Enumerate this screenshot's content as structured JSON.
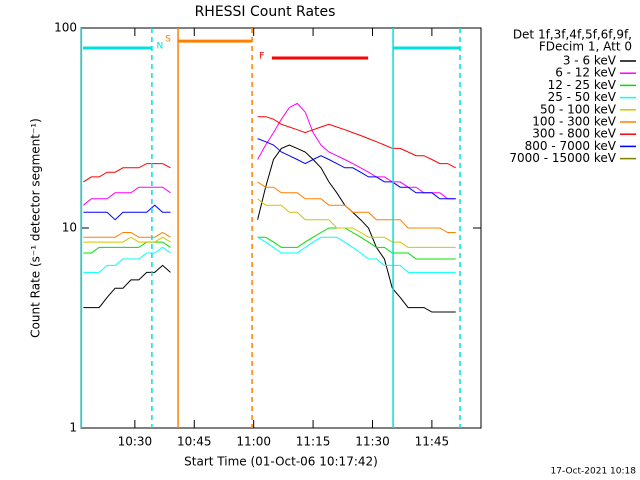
{
  "chart_data": {
    "type": "line",
    "title": "RHESSI Count Rates",
    "y_label": "Count Rate (s⁻¹ detector segment⁻¹)",
    "x_label": "Start Time (01-Oct-06 10:17:42)",
    "footer": "17-Oct-2021 10:18",
    "legend_header": [
      "Det 1f,3f,4f,5f,6f,9f,",
      "FDecim 1, Att 0"
    ],
    "log_y": true,
    "xlim": [
      616.4,
      717.4
    ],
    "ylim": [
      1,
      100
    ],
    "yticks": [
      1,
      10,
      100
    ],
    "xticks": [
      {
        "value": 630,
        "label": "10:30"
      },
      {
        "value": 645,
        "label": "10:45"
      },
      {
        "value": 660,
        "label": "11:00"
      },
      {
        "value": 675,
        "label": "11:15"
      },
      {
        "value": 690,
        "label": "11:30"
      },
      {
        "value": 705,
        "label": "11:45"
      }
    ],
    "x": [
      617,
      619,
      621,
      623,
      625,
      627,
      629,
      631,
      633,
      635,
      637,
      639,
      650,
      661,
      663,
      665,
      667,
      669,
      671,
      673,
      675,
      677,
      679,
      681,
      683,
      685,
      687,
      689,
      691,
      693,
      695,
      697,
      699,
      701,
      703,
      705,
      707,
      709,
      711
    ],
    "series": [
      {
        "name": "3 - 6 keV",
        "color": "#000000",
        "values": [
          4,
          4,
          4,
          4.5,
          5,
          5,
          5.5,
          5.5,
          6,
          6,
          6.5,
          6,
          null,
          11,
          16,
          22,
          25,
          26,
          25,
          24,
          22,
          20,
          17,
          15,
          13,
          12,
          11,
          10,
          8,
          7,
          5,
          4.5,
          4,
          4,
          4,
          3.8,
          3.8,
          3.8,
          3.8
        ]
      },
      {
        "name": "6 - 12 keV",
        "color": "#ff00ff",
        "values": [
          13,
          14,
          14,
          14,
          15,
          15,
          15,
          16,
          16,
          16,
          16,
          15,
          null,
          22,
          26,
          30,
          35,
          40,
          42,
          38,
          30,
          26,
          24,
          23,
          22,
          21,
          20,
          19,
          18,
          18,
          17,
          17,
          16,
          16,
          15,
          15,
          15,
          14,
          14
        ]
      },
      {
        "name": "12 - 25 keV",
        "color": "#00e000",
        "values": [
          7.5,
          7.5,
          8,
          8,
          8,
          8,
          8,
          8,
          8.5,
          8.5,
          8.5,
          8,
          null,
          9,
          9,
          8.5,
          8,
          8,
          8,
          8.5,
          9,
          9.5,
          10,
          10,
          10,
          9.5,
          9,
          8.5,
          8,
          8,
          7.5,
          7.5,
          7.5,
          7,
          7,
          7,
          7,
          7,
          7
        ]
      },
      {
        "name": "25 - 50 keV",
        "color": "#00ffff",
        "values": [
          6,
          6,
          6,
          6.5,
          6.5,
          7,
          7,
          7,
          7.5,
          7.5,
          8,
          7.5,
          null,
          9,
          8.5,
          8,
          7.5,
          7.5,
          7.5,
          8,
          8.5,
          9,
          9,
          9,
          8.5,
          8,
          7.5,
          7,
          7,
          6.5,
          6.5,
          6.5,
          6,
          6,
          6,
          6,
          6,
          6,
          6
        ]
      },
      {
        "name": "50 - 100 keV",
        "color": "#d4c400",
        "values": [
          8.5,
          8.5,
          8.5,
          8.5,
          8.5,
          8.5,
          9,
          8.5,
          8.5,
          8.5,
          9,
          8.5,
          null,
          14,
          13,
          13,
          13,
          12,
          12,
          11,
          11,
          11,
          11,
          10,
          10,
          10,
          9.5,
          9,
          9,
          9,
          8.5,
          8.5,
          8,
          8,
          8,
          8,
          8,
          8,
          8
        ]
      },
      {
        "name": "100 - 300 keV",
        "color": "#ff8000",
        "values": [
          9,
          9,
          9,
          9,
          9,
          9.5,
          9.5,
          9,
          9,
          9,
          9.5,
          9,
          null,
          17,
          16,
          16,
          15,
          15,
          15,
          14,
          14,
          14,
          13,
          13,
          13,
          12,
          12,
          12,
          11,
          11,
          11,
          11,
          10,
          10,
          10,
          10,
          10,
          9.5,
          9.5
        ]
      },
      {
        "name": "300 - 800 keV",
        "color": "#ff0000",
        "values": [
          17,
          18,
          18,
          19,
          19,
          20,
          20,
          20,
          21,
          21,
          21,
          20,
          null,
          36,
          36,
          35,
          33,
          32,
          31,
          30,
          31,
          32,
          33,
          32,
          31,
          30,
          29,
          28,
          27,
          26,
          25,
          25,
          24,
          23,
          23,
          22,
          21,
          21,
          20
        ]
      },
      {
        "name": "800 - 7000 keV",
        "color": "#0000ff",
        "values": [
          12,
          12,
          12,
          12,
          11,
          12,
          12,
          12,
          12,
          13,
          12,
          12,
          null,
          28,
          27,
          26,
          24,
          23,
          22,
          21,
          22,
          23,
          22,
          21,
          20,
          20,
          19,
          18,
          18,
          17,
          17,
          16,
          16,
          15,
          15,
          15,
          14,
          14,
          14
        ]
      },
      {
        "name": "7000 - 15000 keV",
        "color": "#808000"
      }
    ],
    "vlines": [
      {
        "x": 616.5,
        "color": "#00e0e0",
        "dashed": false
      },
      {
        "x": 634.3,
        "color": "#00e0e0",
        "dashed": true
      },
      {
        "x": 640.9,
        "color": "#ff8000",
        "dashed": false
      },
      {
        "x": 659.6,
        "color": "#ff8000",
        "dashed": true
      },
      {
        "x": 695.2,
        "color": "#00e0e0",
        "dashed": false
      },
      {
        "x": 712.1,
        "color": "#00e0e0",
        "dashed": true
      }
    ],
    "intervals": [
      {
        "label": "N",
        "x": [
          616.9,
          634.3
        ],
        "y": 79.4,
        "color": "#00e0e0"
      },
      {
        "label": "S",
        "x": [
          640.9,
          659.6
        ],
        "y": 86,
        "color": "#ff8000"
      },
      {
        "label": "F",
        "x": [
          664.6,
          688.9
        ],
        "y": 70.8,
        "color": "#ff0000"
      },
      {
        "x": [
          695.2,
          712.1
        ],
        "y": 79.4,
        "color": "#00e0e0"
      }
    ]
  }
}
